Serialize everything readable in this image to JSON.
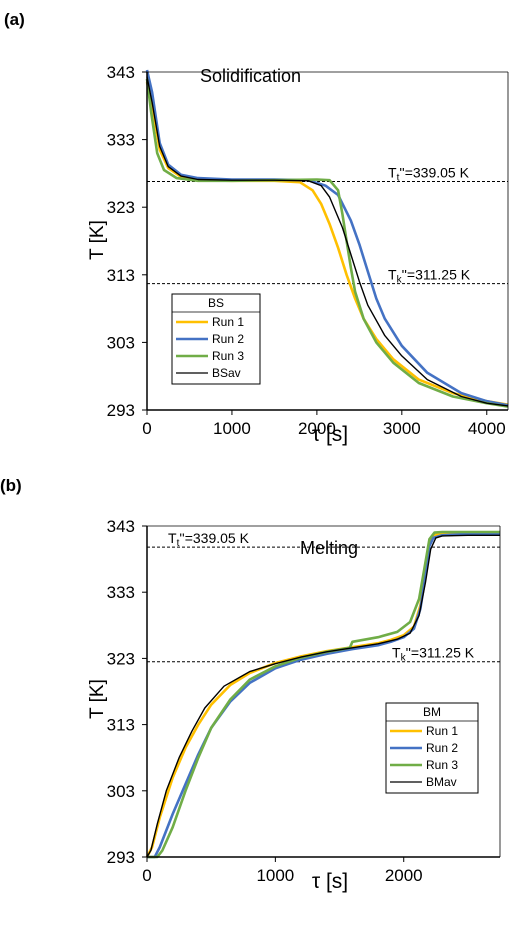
{
  "chart_data": [
    {
      "panel_label": "(a)",
      "type": "line",
      "title": "Solidification",
      "xlabel": "τ [s]",
      "ylabel": "T [K]",
      "xlim": [
        0,
        4250
      ],
      "ylim": [
        293,
        343
      ],
      "xticks": [
        0,
        1000,
        2000,
        3000,
        4000
      ],
      "yticks": [
        293,
        303,
        313,
        323,
        333,
        343
      ],
      "grid": false,
      "legend": {
        "title": "BS",
        "placement": "lower-left"
      },
      "reference_lines": [
        {
          "y": 326.8,
          "text": "T_t'' = 339.05 K",
          "main": "T",
          "sub": "t",
          "suffix": "''=339.05 K"
        },
        {
          "y": 311.7,
          "text": "T_k'' = 311.25 K",
          "main": "T",
          "sub": "k",
          "suffix": "''=311.25 K"
        }
      ],
      "series": [
        {
          "name": "Run 1",
          "color": "#FFC000",
          "x": [
            0,
            60,
            150,
            250,
            400,
            600,
            1000,
            1500,
            1800,
            1950,
            2050,
            2150,
            2250,
            2350,
            2450,
            2550,
            2700,
            2900,
            3200,
            3600,
            4000,
            4250
          ],
          "y": [
            341.5,
            338,
            331.5,
            328.8,
            327.5,
            327,
            326.9,
            326.9,
            326.7,
            325.5,
            323.5,
            320.5,
            317,
            313,
            309.5,
            306.5,
            303.5,
            300.5,
            297.5,
            295.5,
            294.3,
            293.8
          ]
        },
        {
          "name": "Run 2",
          "color": "#4472C4",
          "x": [
            0,
            60,
            150,
            250,
            400,
            600,
            1000,
            1500,
            1900,
            2100,
            2250,
            2400,
            2500,
            2600,
            2700,
            2800,
            3000,
            3300,
            3700,
            4000,
            4250
          ],
          "y": [
            343.3,
            340,
            332.5,
            329.3,
            327.8,
            327.3,
            327.1,
            327.1,
            327,
            326.2,
            324.8,
            321,
            317.5,
            313.5,
            309.5,
            306.5,
            302.5,
            298.5,
            295.5,
            294.3,
            293.7
          ]
        },
        {
          "name": "Run 3",
          "color": "#70AD47",
          "x": [
            0,
            50,
            120,
            200,
            350,
            600,
            1000,
            1500,
            2000,
            2150,
            2250,
            2300,
            2350,
            2400,
            2450,
            2550,
            2700,
            2900,
            3200,
            3600,
            4000,
            4250
          ],
          "y": [
            342,
            337,
            331,
            328.5,
            327.3,
            326.9,
            326.9,
            327,
            327.1,
            327,
            325.5,
            322,
            318,
            314,
            310.5,
            306.5,
            303,
            300,
            297,
            295,
            294,
            293.5
          ]
        },
        {
          "name": "BSav",
          "color": "#000000",
          "x": [
            0,
            60,
            150,
            250,
            400,
            600,
            1000,
            1500,
            1900,
            2050,
            2150,
            2300,
            2400,
            2500,
            2600,
            2800,
            3000,
            3300,
            3700,
            4000,
            4250
          ],
          "y": [
            342.3,
            338.5,
            332,
            329,
            327.6,
            327.1,
            327,
            327,
            326.9,
            326.2,
            324.5,
            320,
            316,
            312,
            308.5,
            304,
            301,
            297.5,
            295,
            294,
            293.6
          ]
        }
      ]
    },
    {
      "panel_label": "(b)",
      "type": "line",
      "title": "Melting",
      "xlabel": "τ [s]",
      "ylabel": "T [K]",
      "xlim": [
        0,
        2750
      ],
      "ylim": [
        293,
        343
      ],
      "xticks": [
        0,
        1000,
        2000
      ],
      "yticks": [
        293,
        303,
        313,
        323,
        333,
        343
      ],
      "grid": false,
      "legend": {
        "title": "BM",
        "placement": "right"
      },
      "reference_lines": [
        {
          "y": 339.8,
          "text": "T_t'' = 339.05 K",
          "main": "T",
          "sub": "t",
          "suffix": "''=339.05 K"
        },
        {
          "y": 322.5,
          "text": "T_k'' = 311.25 K",
          "main": "T",
          "sub": "k",
          "suffix": "''=311.25 K"
        }
      ],
      "series": [
        {
          "name": "Run 1",
          "color": "#FFC000",
          "x": [
            0,
            40,
            100,
            200,
            300,
            400,
            500,
            650,
            800,
            1000,
            1200,
            1400,
            1600,
            1800,
            1900,
            2000,
            2080,
            2130,
            2170,
            2200,
            2230,
            2300,
            2500,
            2750
          ],
          "y": [
            293,
            294.5,
            299,
            305,
            309.5,
            313,
            316,
            319,
            320.8,
            322.3,
            323.3,
            324.1,
            324.7,
            325.3,
            325.8,
            326.5,
            327.8,
            331,
            336,
            340.5,
            341.6,
            341.8,
            341.9,
            341.9
          ]
        },
        {
          "name": "Run 2",
          "color": "#4472C4",
          "x": [
            0,
            60,
            100,
            200,
            300,
            400,
            500,
            650,
            800,
            1000,
            1200,
            1400,
            1600,
            1800,
            1900,
            2000,
            2080,
            2130,
            2170,
            2200,
            2230,
            2300,
            2500,
            2750
          ],
          "y": [
            293,
            293,
            294.5,
            299.5,
            304,
            308.5,
            312.5,
            316.5,
            319.3,
            321.5,
            322.8,
            323.7,
            324.4,
            325,
            325.5,
            326.2,
            327.5,
            330.5,
            335.5,
            340,
            341.2,
            341.6,
            341.8,
            341.8
          ]
        },
        {
          "name": "Run 3",
          "color": "#70AD47",
          "x": [
            0,
            80,
            120,
            200,
            300,
            400,
            500,
            650,
            800,
            1000,
            1200,
            1400,
            1580,
            1600,
            1800,
            1950,
            2050,
            2120,
            2160,
            2200,
            2240,
            2300,
            2500,
            2750
          ],
          "y": [
            293,
            293,
            294,
            297.5,
            303,
            308,
            312.5,
            316.8,
            319.8,
            321.8,
            323.1,
            324,
            324.6,
            325.5,
            326.2,
            327,
            328.5,
            332,
            336.5,
            341,
            342,
            342.1,
            342.1,
            342.1
          ]
        },
        {
          "name": "BMav",
          "color": "#000000",
          "x": [
            0,
            30,
            80,
            150,
            250,
            350,
            450,
            600,
            800,
            1000,
            1200,
            1400,
            1600,
            1800,
            1950,
            2050,
            2120,
            2170,
            2210,
            2250,
            2300,
            2500,
            2750
          ],
          "y": [
            293,
            294,
            298,
            303,
            308,
            312,
            315.5,
            318.8,
            321,
            322.2,
            323.2,
            324,
            324.6,
            325.2,
            325.9,
            326.8,
            329.5,
            334.5,
            339.5,
            341.2,
            341.5,
            341.6,
            341.6
          ]
        }
      ]
    }
  ]
}
